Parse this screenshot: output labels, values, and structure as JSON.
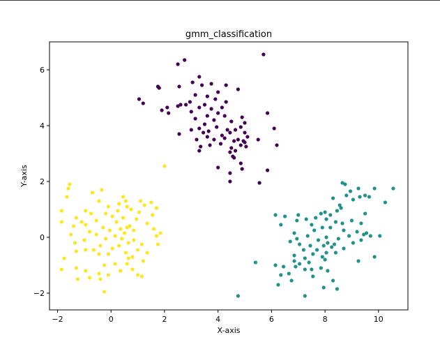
{
  "chart_data": {
    "type": "scatter",
    "title": "gmm_classification",
    "xlabel": "X-axis",
    "ylabel": "Y-axis",
    "xlim": [
      -2.3,
      11.1
    ],
    "ylim": [
      -2.6,
      7.0
    ],
    "xticks": [
      -2,
      0,
      2,
      4,
      6,
      8,
      10
    ],
    "yticks": [
      -2,
      0,
      2,
      4,
      6
    ],
    "xtick_labels": [
      "−2",
      "0",
      "2",
      "4",
      "6",
      "8",
      "10"
    ],
    "ytick_labels": [
      "−2",
      "0",
      "2",
      "4",
      "6"
    ],
    "grid": false,
    "legend": "none",
    "colors": [
      "#440154",
      "#21918c",
      "#fde725"
    ],
    "series": [
      {
        "color": "#440154",
        "points": [
          [
            5.7,
            6.55
          ],
          [
            2.5,
            6.2
          ],
          [
            2.75,
            6.35
          ],
          [
            3.3,
            5.75
          ],
          [
            3.05,
            5.55
          ],
          [
            3.4,
            5.45
          ],
          [
            3.75,
            5.5
          ],
          [
            4.3,
            5.45
          ],
          [
            4.75,
            5.3
          ],
          [
            1.75,
            5.4
          ],
          [
            1.8,
            5.35
          ],
          [
            2.55,
            5.4
          ],
          [
            1.05,
            4.95
          ],
          [
            1.2,
            4.8
          ],
          [
            1.9,
            4.55
          ],
          [
            2.1,
            4.65
          ],
          [
            2.5,
            4.7
          ],
          [
            2.8,
            4.75
          ],
          [
            3.15,
            5.1
          ],
          [
            3.6,
            5.05
          ],
          [
            4.0,
            5.2
          ],
          [
            3.9,
            4.95
          ],
          [
            4.3,
            4.85
          ],
          [
            4.15,
            4.65
          ],
          [
            3.5,
            4.75
          ],
          [
            3.3,
            4.65
          ],
          [
            2.95,
            4.85
          ],
          [
            2.6,
            4.75
          ],
          [
            3.75,
            4.6
          ],
          [
            2.15,
            4.45
          ],
          [
            3.0,
            4.5
          ],
          [
            3.6,
            4.35
          ],
          [
            4.0,
            4.45
          ],
          [
            4.25,
            4.35
          ],
          [
            3.85,
            4.2
          ],
          [
            4.5,
            4.15
          ],
          [
            4.9,
            4.3
          ],
          [
            5.0,
            4.1
          ],
          [
            5.85,
            4.45
          ],
          [
            3.15,
            4.25
          ],
          [
            3.5,
            4.05
          ],
          [
            3.95,
            3.95
          ],
          [
            4.35,
            3.85
          ],
          [
            4.85,
            3.95
          ],
          [
            5.0,
            3.75
          ],
          [
            3.3,
            3.9
          ],
          [
            3.45,
            3.75
          ],
          [
            3.65,
            3.8
          ],
          [
            4.15,
            3.65
          ],
          [
            4.45,
            3.75
          ],
          [
            4.65,
            3.85
          ],
          [
            6.1,
            3.9
          ],
          [
            2.55,
            3.7
          ],
          [
            3.0,
            3.85
          ],
          [
            3.2,
            3.5
          ],
          [
            3.6,
            3.6
          ],
          [
            3.85,
            3.5
          ],
          [
            4.25,
            3.55
          ],
          [
            4.6,
            3.45
          ],
          [
            4.75,
            3.5
          ],
          [
            4.95,
            3.45
          ],
          [
            5.0,
            3.4
          ],
          [
            5.1,
            3.6
          ],
          [
            3.35,
            3.25
          ],
          [
            3.7,
            3.3
          ],
          [
            4.1,
            3.35
          ],
          [
            4.5,
            3.2
          ],
          [
            4.85,
            3.3
          ],
          [
            5.5,
            3.5
          ],
          [
            6.2,
            3.3
          ],
          [
            3.3,
            3.1
          ],
          [
            4.45,
            3.05
          ],
          [
            4.6,
            2.85
          ],
          [
            4.85,
            2.65
          ],
          [
            4.65,
            3.1
          ],
          [
            5.05,
            3.25
          ],
          [
            4.0,
            2.5
          ],
          [
            4.9,
            2.45
          ],
          [
            4.45,
            2.3
          ],
          [
            5.85,
            2.4
          ],
          [
            4.45,
            2.0
          ],
          [
            5.55,
            1.95
          ],
          [
            4.55,
            2.9
          ]
        ]
      },
      {
        "color": "#21918c",
        "points": [
          [
            8.65,
            1.95
          ],
          [
            8.75,
            1.9
          ],
          [
            9.25,
            1.75
          ],
          [
            9.85,
            1.75
          ],
          [
            10.55,
            1.75
          ],
          [
            8.95,
            1.65
          ],
          [
            8.8,
            1.5
          ],
          [
            9.5,
            1.5
          ],
          [
            9.3,
            1.45
          ],
          [
            9.65,
            1.45
          ],
          [
            8.3,
            1.4
          ],
          [
            9.05,
            1.35
          ],
          [
            10.25,
            1.25
          ],
          [
            8.55,
            1.15
          ],
          [
            8.6,
            1.05
          ],
          [
            8.0,
            0.9
          ],
          [
            8.45,
            0.95
          ],
          [
            9.5,
            0.85
          ],
          [
            8.2,
            0.8
          ],
          [
            7.85,
            0.85
          ],
          [
            7.0,
            0.8
          ],
          [
            6.15,
            0.8
          ],
          [
            6.5,
            0.75
          ],
          [
            7.65,
            0.7
          ],
          [
            8.05,
            0.65
          ],
          [
            7.3,
            0.65
          ],
          [
            6.95,
            0.6
          ],
          [
            9.0,
            0.6
          ],
          [
            8.4,
            0.55
          ],
          [
            8.65,
            0.5
          ],
          [
            9.35,
            0.5
          ],
          [
            7.5,
            0.45
          ],
          [
            6.35,
            0.45
          ],
          [
            7.9,
            0.35
          ],
          [
            8.2,
            0.35
          ],
          [
            7.6,
            0.25
          ],
          [
            8.7,
            0.25
          ],
          [
            9.2,
            0.2
          ],
          [
            9.55,
            0.15
          ],
          [
            6.85,
            0.15
          ],
          [
            9.45,
            0.1
          ],
          [
            10.05,
            0.05
          ],
          [
            7.35,
            0.05
          ],
          [
            8.9,
            0.05
          ],
          [
            9.7,
            0.05
          ],
          [
            8.05,
            0.0
          ],
          [
            8.5,
            -0.05
          ],
          [
            6.95,
            -0.05
          ],
          [
            7.75,
            -0.1
          ],
          [
            9.35,
            -0.1
          ],
          [
            6.7,
            -0.15
          ],
          [
            8.1,
            -0.2
          ],
          [
            7.05,
            -0.25
          ],
          [
            9.05,
            -0.2
          ],
          [
            7.95,
            -0.3
          ],
          [
            8.35,
            -0.25
          ],
          [
            8.25,
            -0.35
          ],
          [
            7.45,
            -0.3
          ],
          [
            8.7,
            -0.4
          ],
          [
            7.2,
            -0.45
          ],
          [
            7.7,
            -0.45
          ],
          [
            8.05,
            -0.55
          ],
          [
            7.55,
            -0.6
          ],
          [
            8.4,
            -0.55
          ],
          [
            6.85,
            -0.65
          ],
          [
            7.25,
            -0.75
          ],
          [
            7.9,
            -0.7
          ],
          [
            8.0,
            -0.8
          ],
          [
            9.25,
            -0.85
          ],
          [
            6.85,
            -0.85
          ],
          [
            7.4,
            -0.9
          ],
          [
            7.05,
            -0.95
          ],
          [
            5.4,
            -0.9
          ],
          [
            6.15,
            -1.0
          ],
          [
            6.45,
            -1.05
          ],
          [
            6.9,
            -1.05
          ],
          [
            7.85,
            -1.1
          ],
          [
            7.5,
            -1.15
          ],
          [
            7.25,
            -1.15
          ],
          [
            8.1,
            -1.2
          ],
          [
            6.65,
            -1.3
          ],
          [
            6.35,
            -1.35
          ],
          [
            7.55,
            -1.4
          ],
          [
            8.3,
            -1.55
          ],
          [
            6.75,
            -1.55
          ],
          [
            6.25,
            -1.7
          ],
          [
            7.95,
            -1.8
          ],
          [
            8.45,
            -1.85
          ],
          [
            4.75,
            -2.1
          ],
          [
            7.25,
            -2.1
          ],
          [
            9.85,
            -0.7
          ]
        ]
      },
      {
        "color": "#fde725",
        "points": [
          [
            2.0,
            2.55
          ],
          [
            -1.55,
            1.9
          ],
          [
            -1.6,
            1.75
          ],
          [
            -0.35,
            1.7
          ],
          [
            -0.7,
            1.6
          ],
          [
            -1.65,
            1.45
          ],
          [
            0.45,
            1.45
          ],
          [
            0.55,
            1.3
          ],
          [
            -0.45,
            1.3
          ],
          [
            1.1,
            1.3
          ],
          [
            0.3,
            1.2
          ],
          [
            -0.1,
            1.1
          ],
          [
            0.6,
            1.1
          ],
          [
            1.25,
            1.15
          ],
          [
            1.5,
            1.25
          ],
          [
            -1.85,
            0.95
          ],
          [
            -0.95,
            0.95
          ],
          [
            0.25,
            0.95
          ],
          [
            0.75,
            1.0
          ],
          [
            1.7,
            1.05
          ],
          [
            -0.75,
            0.85
          ],
          [
            -0.2,
            0.85
          ],
          [
            0.05,
            0.75
          ],
          [
            1.05,
            0.9
          ],
          [
            1.55,
            0.8
          ],
          [
            -1.3,
            0.7
          ],
          [
            0.45,
            0.7
          ],
          [
            0.95,
            0.65
          ],
          [
            -0.55,
            0.6
          ],
          [
            0.2,
            0.55
          ],
          [
            -1.85,
            0.55
          ],
          [
            -1.1,
            0.55
          ],
          [
            -0.95,
            0.45
          ],
          [
            1.35,
            0.5
          ],
          [
            -1.4,
            0.4
          ],
          [
            0.7,
            0.4
          ],
          [
            -0.3,
            0.35
          ],
          [
            0.6,
            0.35
          ],
          [
            -0.05,
            0.25
          ],
          [
            0.35,
            0.3
          ],
          [
            0.85,
            0.25
          ],
          [
            1.6,
            0.3
          ],
          [
            -0.8,
            0.2
          ],
          [
            0.5,
            0.15
          ],
          [
            1.85,
            0.15
          ],
          [
            -1.5,
            0.1
          ],
          [
            -0.55,
            0.1
          ],
          [
            1.7,
            0.05
          ],
          [
            0.15,
            0.05
          ],
          [
            0.4,
            -0.05
          ],
          [
            -0.2,
            -0.05
          ],
          [
            0.85,
            -0.1
          ],
          [
            -1.0,
            -0.1
          ],
          [
            -1.35,
            -0.2
          ],
          [
            0.65,
            -0.2
          ],
          [
            1.15,
            -0.25
          ],
          [
            1.75,
            -0.25
          ],
          [
            -0.4,
            -0.3
          ],
          [
            0.3,
            -0.3
          ],
          [
            0.05,
            -0.4
          ],
          [
            -0.95,
            -0.45
          ],
          [
            -0.65,
            -0.45
          ],
          [
            -1.3,
            -0.5
          ],
          [
            1.0,
            -0.45
          ],
          [
            1.35,
            -0.55
          ],
          [
            0.55,
            -0.55
          ],
          [
            -0.45,
            -0.6
          ],
          [
            -0.1,
            -0.6
          ],
          [
            0.8,
            -0.7
          ],
          [
            -1.75,
            -0.75
          ],
          [
            0.65,
            -0.75
          ],
          [
            1.2,
            -0.85
          ],
          [
            0.15,
            -0.95
          ],
          [
            -0.25,
            -1.0
          ],
          [
            0.6,
            -0.95
          ],
          [
            -1.3,
            -1.1
          ],
          [
            -1.85,
            -1.15
          ],
          [
            0.8,
            -1.15
          ],
          [
            0.35,
            -1.2
          ],
          [
            -0.95,
            -1.2
          ],
          [
            -0.45,
            -1.3
          ],
          [
            1.0,
            -1.35
          ],
          [
            -0.1,
            -1.35
          ],
          [
            1.15,
            -1.4
          ],
          [
            -0.8,
            -1.45
          ],
          [
            -0.4,
            -1.5
          ],
          [
            -1.25,
            -1.5
          ],
          [
            -0.25,
            -1.95
          ]
        ]
      }
    ]
  }
}
